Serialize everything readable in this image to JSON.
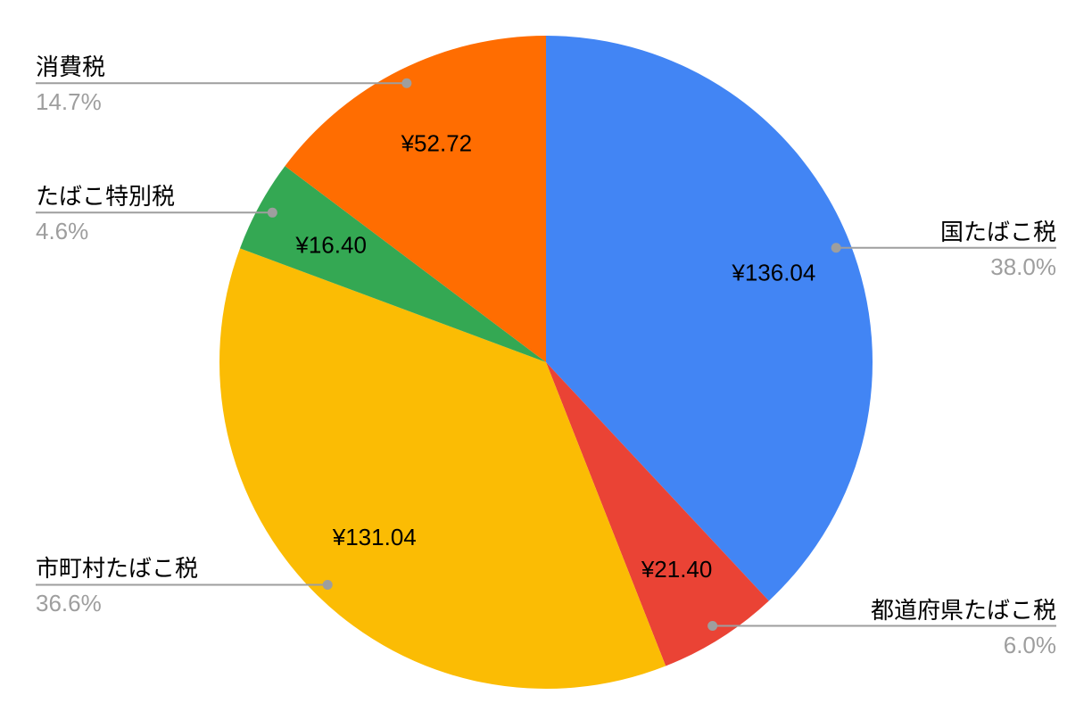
{
  "chart_data": {
    "type": "pie",
    "title": "",
    "unit": "¥",
    "categories": [
      "国たばこ税",
      "都道府県たばこ税",
      "市町村たばこ税",
      "たばこ特別税",
      "消費税"
    ],
    "values": [
      136.04,
      21.4,
      131.04,
      16.4,
      52.72
    ],
    "value_labels": [
      "¥136.04",
      "¥21.40",
      "¥131.04",
      "¥16.40",
      "¥52.72"
    ],
    "percent_labels": [
      "38.0%",
      "6.0%",
      "36.6%",
      "4.6%",
      "14.7%"
    ],
    "colors": [
      "#4285f4",
      "#ea4335",
      "#fbbc04",
      "#34a853",
      "#ff6d01"
    ],
    "total": 357.6,
    "start_angle_deg": 0,
    "direction": "clockwise",
    "background": "#ffffff",
    "leader_line_color": "#9e9e9e",
    "percent_text_color": "#9e9e9e",
    "label_text_color": "#000000",
    "value_text_color": "#000000",
    "legend_position": "labeled-callouts"
  }
}
